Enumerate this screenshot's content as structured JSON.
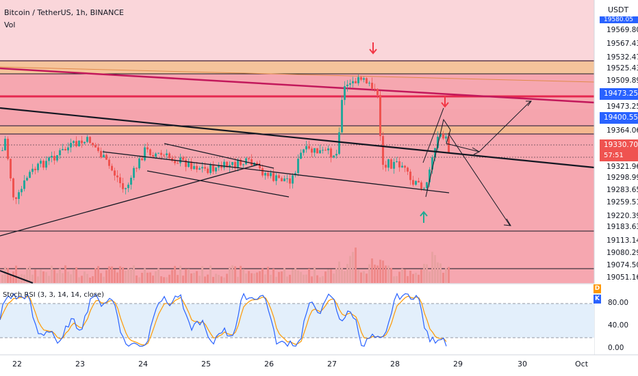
{
  "symbol_line": "Bitcoin / TetherUS, 1h, BINANCE",
  "vol_label": "Vol",
  "rsi_label": "Stoch RSI (3, 3, 14, 14, close)",
  "axis_title": "USDT",
  "price_ticks": [
    "19569.80",
    "19567.43",
    "19532.47",
    "19525.43",
    "19509.89",
    "19473.25",
    "19364.06",
    "19321.96",
    "19298.99",
    "19283.65",
    "19259.51",
    "19220.39",
    "19183.63",
    "19113.14",
    "19080.29",
    "19074.50",
    "19051.16"
  ],
  "tags": {
    "top_partial": "19580.05",
    "blue_1": "19473.25",
    "blue_2": "19400.55",
    "last_price": "19330.70",
    "countdown": "57:51"
  },
  "rsi_ticks": [
    "80.00",
    "40.00",
    "0.00"
  ],
  "rsi_badges": {
    "d": "D",
    "k": "K"
  },
  "x_labels": [
    "22",
    "23",
    "24",
    "25",
    "26",
    "27",
    "28",
    "29",
    "30",
    "Oct"
  ],
  "colors": {
    "bg_pink": "#f8bcc2",
    "band_orange": "#f5c49b",
    "resistance_red": "#e5284f",
    "up_candle": "#26a69a",
    "down_candle": "#ef5350",
    "volume_red": "#ef8a8a",
    "stoch_k": "#2962ff",
    "stoch_d": "#ff9800",
    "arrow_down": "#f23645",
    "arrow_up": "#22ab94",
    "blue_tag": "#2962ff",
    "last_tag": "#ef5350"
  },
  "chart_data": {
    "type": "candlestick",
    "title": "Bitcoin / TetherUS, 1h, BINANCE",
    "x_labels": [
      "22",
      "23",
      "24",
      "25",
      "26",
      "27",
      "28",
      "29",
      "30",
      "Oct"
    ],
    "price_range": [
      19051.16,
      19580.05
    ],
    "last_price": 19330.7,
    "key_levels": [
      19532.47,
      19509.89,
      19473.25,
      19364.06,
      19321.96,
      19183.63,
      19074.5
    ],
    "indicator": {
      "name": "Stoch RSI (3, 3, 14, 14, close)",
      "levels": [
        80,
        40,
        0
      ]
    }
  }
}
